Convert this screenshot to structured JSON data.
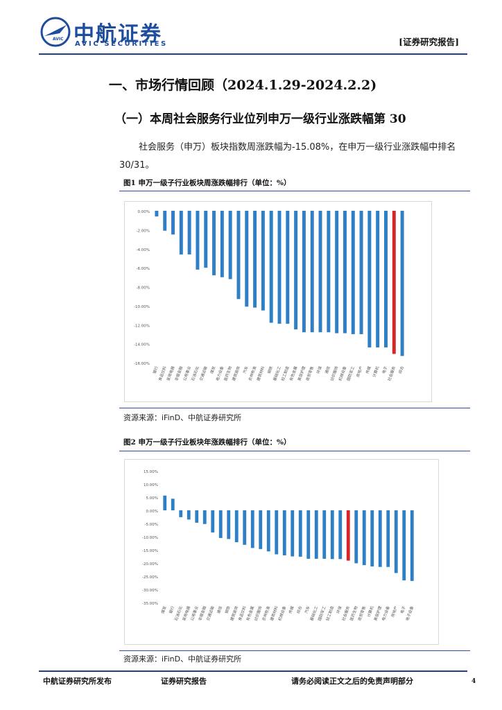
{
  "header": {
    "logo_cn": "中航证券",
    "logo_en": "AVIC SECURITIES",
    "logo_badge": "AVIC",
    "report_tag": "[证券研究报告]"
  },
  "section": {
    "h1": "一、市场行情回顾（2024.1.29-2024.2.2)",
    "h2": "（一）本周社会服务行业位列申万一级行业涨跌幅第 30",
    "paragraph": "社会服务（申万）板块指数周涨跌幅为-15.08%，在申万一级行业涨跌幅中排名30/31。"
  },
  "figure1": {
    "title": "图1  申万一级子行业板块周涨跌幅排行（单位：%）",
    "source": "资源来源：iFinD、中航证券研究所",
    "chart_data": {
      "type": "bar",
      "yticks": [
        "0.00%",
        "-2.00%",
        "-4.00%",
        "-6.00%",
        "-8.00%",
        "-10.00%",
        "-12.00%",
        "-14.00%",
        "-16.00%"
      ],
      "ylim": [
        -16,
        0
      ],
      "categories": [
        "银行",
        "食品饮料",
        "家用电器",
        "非银金融",
        "公用事业",
        "石油石化",
        "交通运输",
        "煤炭",
        "电力设备",
        "医药生物",
        "建筑装饰",
        "汽车",
        "农林牧渔",
        "建筑材料",
        "钢铁",
        "基础化工",
        "轻工制造",
        "有色金属",
        "美容护理",
        "商贸零售",
        "环保",
        "通信",
        "纺织服饰",
        "机械设备",
        "国防军工",
        "房地产",
        "传媒",
        "计算机",
        "电子",
        "社会服务",
        "综合"
      ],
      "values": [
        -0.6,
        -2.1,
        -2.5,
        -4.6,
        -4.6,
        -6.2,
        -6.0,
        -6.8,
        -7.0,
        -7.2,
        -9.3,
        -10.1,
        -10.2,
        -10.5,
        -11.8,
        -11.9,
        -11.9,
        -12.5,
        -12.8,
        -12.8,
        -12.8,
        -12.8,
        -12.9,
        -12.9,
        -13.0,
        -13.0,
        -14.4,
        -14.4,
        -14.4,
        -15.08,
        -15.3
      ],
      "highlight_index": 29,
      "colors": {
        "bar": "#2e7fc6",
        "highlight": "#d62728"
      }
    }
  },
  "figure2": {
    "title": "图2  申万一级子行业板块年涨跌幅排行（单位：%）",
    "source": "资源来源：iFinD、中航证券研究所",
    "chart_data": {
      "type": "bar",
      "yticks": [
        "15.00%",
        "10.00%",
        "5.00%",
        "0.00%",
        "-5.00%",
        "-10.00%",
        "-15.00%",
        "-20.00%",
        "-25.00%",
        "-30.00%",
        "-35.00%"
      ],
      "ylim": [
        -35,
        15
      ],
      "categories": [
        "煤炭",
        "银行",
        "石油石化",
        "家用电器",
        "公用事业",
        "非银金融",
        "交通运输",
        "通信",
        "钢铁",
        "建筑装饰",
        "食品饮料",
        "有色金属",
        "纺织服饰",
        "农林牧渔",
        "建筑材料",
        "机械设备",
        "传媒",
        "综合",
        "汽车",
        "基础化工",
        "国防军工",
        "轻工制造",
        "环保",
        "社会服务",
        "医药生物",
        "商贸零售",
        "计算机",
        "美容护理",
        "电力设备",
        "房地产",
        "电子",
        "电子设备"
      ],
      "values": [
        5.6,
        4.4,
        -2.6,
        -3.5,
        -4.7,
        -5.2,
        -8.4,
        -10.5,
        -10.9,
        -12.1,
        -13.1,
        -14.3,
        -14.7,
        -15.6,
        -16.7,
        -17.1,
        -17.5,
        -17.6,
        -18.4,
        -18.4,
        -18.4,
        -18.5,
        -18.5,
        -19.1,
        -20.1,
        -20.8,
        -21.3,
        -21.5,
        -21.5,
        -23.8,
        -26.6,
        -26.8
      ],
      "highlight_index": 23,
      "colors": {
        "bar": "#2e7fc6",
        "highlight": "#d62728"
      }
    }
  },
  "footer": {
    "left": "中航证券研究所发布",
    "middle": "证券研究报告",
    "right": "请务必阅读正文之后的免责声明部分",
    "page": "4"
  }
}
